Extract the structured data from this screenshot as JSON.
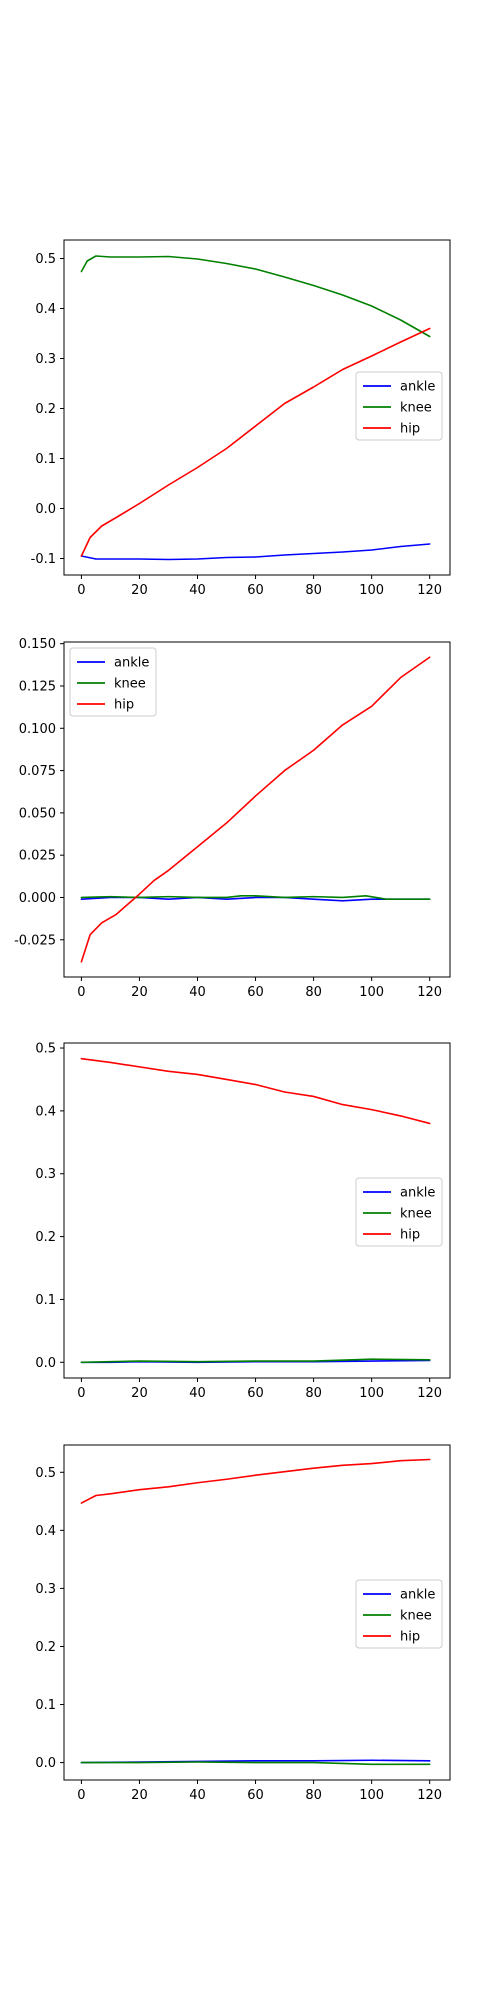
{
  "chart_data": [
    {
      "type": "line",
      "xlim": [
        -6,
        127
      ],
      "ylim": [
        -0.133,
        0.537
      ],
      "xticks": [
        "0",
        "20",
        "40",
        "60",
        "80",
        "100",
        "120"
      ],
      "yticks": [
        "-0.1",
        "0.0",
        "0.1",
        "0.2",
        "0.3",
        "0.4",
        "0.5"
      ],
      "grid": false,
      "legend": {
        "position": "center-right",
        "entries": [
          "ankle",
          "knee",
          "hip"
        ]
      },
      "series": [
        {
          "name": "ankle",
          "color": "#0000ff",
          "points": [
            [
              0,
              -0.095
            ],
            [
              5,
              -0.101
            ],
            [
              10,
              -0.101
            ],
            [
              20,
              -0.101
            ],
            [
              30,
              -0.102
            ],
            [
              40,
              -0.101
            ],
            [
              50,
              -0.098
            ],
            [
              60,
              -0.097
            ],
            [
              70,
              -0.093
            ],
            [
              80,
              -0.09
            ],
            [
              90,
              -0.087
            ],
            [
              100,
              -0.083
            ],
            [
              110,
              -0.076
            ],
            [
              120,
              -0.071
            ]
          ]
        },
        {
          "name": "knee",
          "color": "#008000",
          "points": [
            [
              0,
              0.474
            ],
            [
              2,
              0.495
            ],
            [
              5,
              0.505
            ],
            [
              10,
              0.503
            ],
            [
              20,
              0.503
            ],
            [
              30,
              0.504
            ],
            [
              40,
              0.499
            ],
            [
              50,
              0.49
            ],
            [
              60,
              0.479
            ],
            [
              70,
              0.463
            ],
            [
              80,
              0.446
            ],
            [
              90,
              0.427
            ],
            [
              100,
              0.405
            ],
            [
              110,
              0.377
            ],
            [
              120,
              0.344
            ]
          ]
        },
        {
          "name": "hip",
          "color": "#ff0000",
          "points": [
            [
              0,
              -0.095
            ],
            [
              3,
              -0.058
            ],
            [
              7,
              -0.035
            ],
            [
              12,
              -0.018
            ],
            [
              20,
              0.01
            ],
            [
              30,
              0.047
            ],
            [
              40,
              0.082
            ],
            [
              50,
              0.12
            ],
            [
              60,
              0.165
            ],
            [
              70,
              0.21
            ],
            [
              80,
              0.243
            ],
            [
              90,
              0.278
            ],
            [
              100,
              0.305
            ],
            [
              110,
              0.333
            ],
            [
              120,
              0.36
            ]
          ]
        }
      ]
    },
    {
      "type": "line",
      "xlim": [
        -6,
        127
      ],
      "ylim": [
        -0.047,
        0.151
      ],
      "xticks": [
        "0",
        "20",
        "40",
        "60",
        "80",
        "100",
        "120"
      ],
      "yticks": [
        "-0.025",
        "0.000",
        "0.025",
        "0.050",
        "0.075",
        "0.100",
        "0.125",
        "0.150"
      ],
      "grid": false,
      "legend": {
        "position": "upper-left",
        "entries": [
          "ankle",
          "knee",
          "hip"
        ]
      },
      "series": [
        {
          "name": "ankle",
          "color": "#0000ff",
          "points": [
            [
              0,
              -0.001
            ],
            [
              10,
              0.0
            ],
            [
              20,
              0.0
            ],
            [
              30,
              -0.001
            ],
            [
              40,
              0.0
            ],
            [
              50,
              -0.001
            ],
            [
              60,
              0.0
            ],
            [
              70,
              0.0
            ],
            [
              80,
              -0.001
            ],
            [
              90,
              -0.002
            ],
            [
              100,
              -0.001
            ],
            [
              110,
              -0.001
            ],
            [
              120,
              -0.001
            ]
          ]
        },
        {
          "name": "knee",
          "color": "#008000",
          "points": [
            [
              0,
              0.0
            ],
            [
              10,
              0.0005
            ],
            [
              20,
              0.0
            ],
            [
              30,
              0.0005
            ],
            [
              40,
              0.0
            ],
            [
              50,
              0.0
            ],
            [
              55,
              0.001
            ],
            [
              60,
              0.001
            ],
            [
              70,
              0.0
            ],
            [
              80,
              0.0005
            ],
            [
              90,
              0.0
            ],
            [
              98,
              0.001
            ],
            [
              105,
              -0.001
            ],
            [
              120,
              -0.001
            ]
          ]
        },
        {
          "name": "hip",
          "color": "#ff0000",
          "points": [
            [
              0,
              -0.038
            ],
            [
              3,
              -0.022
            ],
            [
              7,
              -0.015
            ],
            [
              12,
              -0.01
            ],
            [
              20,
              0.002
            ],
            [
              25,
              0.01
            ],
            [
              30,
              0.016
            ],
            [
              40,
              0.03
            ],
            [
              50,
              0.044
            ],
            [
              60,
              0.06
            ],
            [
              70,
              0.075
            ],
            [
              80,
              0.087
            ],
            [
              90,
              0.102
            ],
            [
              100,
              0.113
            ],
            [
              110,
              0.13
            ],
            [
              120,
              0.142
            ]
          ]
        }
      ]
    },
    {
      "type": "line",
      "xlim": [
        -6,
        127
      ],
      "ylim": [
        -0.025,
        0.508
      ],
      "xticks": [
        "0",
        "20",
        "40",
        "60",
        "80",
        "100",
        "120"
      ],
      "yticks": [
        "0.0",
        "0.1",
        "0.2",
        "0.3",
        "0.4",
        "0.5"
      ],
      "grid": false,
      "legend": {
        "position": "center-right",
        "entries": [
          "ankle",
          "knee",
          "hip"
        ]
      },
      "series": [
        {
          "name": "ankle",
          "color": "#0000ff",
          "points": [
            [
              0,
              0.0
            ],
            [
              10,
              0.0
            ],
            [
              20,
              0.001
            ],
            [
              40,
              0.0
            ],
            [
              60,
              0.001
            ],
            [
              80,
              0.001
            ],
            [
              100,
              0.002
            ],
            [
              120,
              0.003
            ]
          ]
        },
        {
          "name": "knee",
          "color": "#008000",
          "points": [
            [
              0,
              0.0
            ],
            [
              10,
              0.001
            ],
            [
              20,
              0.002
            ],
            [
              40,
              0.001
            ],
            [
              60,
              0.002
            ],
            [
              80,
              0.002
            ],
            [
              100,
              0.005
            ],
            [
              120,
              0.004
            ]
          ]
        },
        {
          "name": "hip",
          "color": "#ff0000",
          "points": [
            [
              0,
              0.483
            ],
            [
              10,
              0.477
            ],
            [
              20,
              0.47
            ],
            [
              30,
              0.463
            ],
            [
              40,
              0.458
            ],
            [
              50,
              0.45
            ],
            [
              60,
              0.442
            ],
            [
              70,
              0.43
            ],
            [
              80,
              0.423
            ],
            [
              90,
              0.41
            ],
            [
              100,
              0.402
            ],
            [
              110,
              0.392
            ],
            [
              120,
              0.38
            ]
          ]
        }
      ]
    },
    {
      "type": "line",
      "xlim": [
        -6,
        127
      ],
      "ylim": [
        -0.03,
        0.547
      ],
      "xticks": [
        "0",
        "20",
        "40",
        "60",
        "80",
        "100",
        "120"
      ],
      "yticks": [
        "0.0",
        "0.1",
        "0.2",
        "0.3",
        "0.4",
        "0.5"
      ],
      "grid": false,
      "legend": {
        "position": "center-right",
        "entries": [
          "ankle",
          "knee",
          "hip"
        ]
      },
      "series": [
        {
          "name": "ankle",
          "color": "#0000ff",
          "points": [
            [
              0,
              0.0
            ],
            [
              20,
              0.001
            ],
            [
              40,
              0.002
            ],
            [
              60,
              0.003
            ],
            [
              80,
              0.003
            ],
            [
              100,
              0.004
            ],
            [
              120,
              0.003
            ]
          ]
        },
        {
          "name": "knee",
          "color": "#008000",
          "points": [
            [
              0,
              0.0
            ],
            [
              20,
              0.0
            ],
            [
              40,
              0.001
            ],
            [
              60,
              0.0
            ],
            [
              80,
              0.0
            ],
            [
              100,
              -0.003
            ],
            [
              120,
              -0.003
            ]
          ]
        },
        {
          "name": "hip",
          "color": "#ff0000",
          "points": [
            [
              0,
              0.447
            ],
            [
              5,
              0.46
            ],
            [
              10,
              0.463
            ],
            [
              20,
              0.47
            ],
            [
              30,
              0.475
            ],
            [
              40,
              0.482
            ],
            [
              50,
              0.488
            ],
            [
              60,
              0.495
            ],
            [
              70,
              0.501
            ],
            [
              80,
              0.507
            ],
            [
              90,
              0.512
            ],
            [
              100,
              0.515
            ],
            [
              110,
              0.52
            ],
            [
              120,
              0.522
            ]
          ]
        }
      ]
    }
  ]
}
